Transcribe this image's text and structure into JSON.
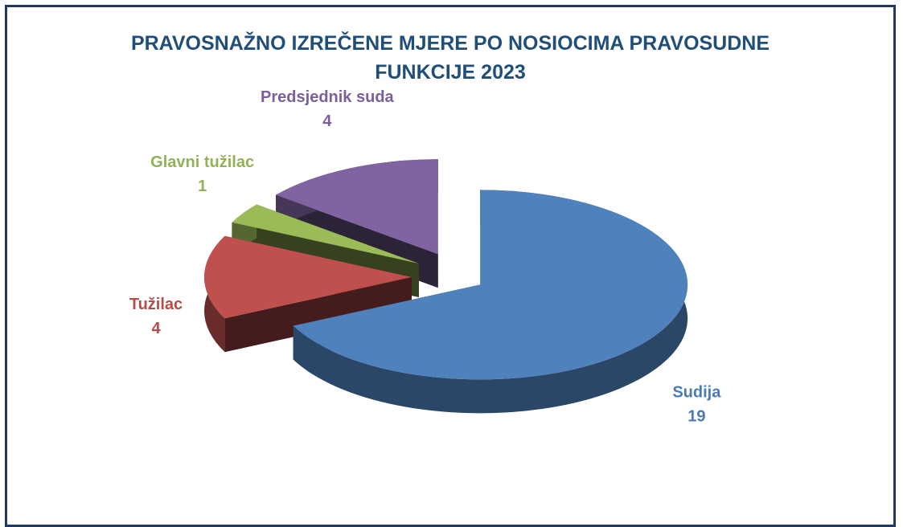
{
  "chart_data": {
    "type": "pie",
    "title": "PRAVOSNAŽNO IZREČENE MJERE PO NOSIOCIMA PRAVOSUDNE FUNKCIJE 2023",
    "categories": [
      "Sudija",
      "Tužilac",
      "Glavni tužilac",
      "Predsjednik suda"
    ],
    "values": [
      19,
      4,
      1,
      4
    ],
    "colors": [
      "#4f81bd",
      "#c0504d",
      "#9bbb59",
      "#8064a2"
    ]
  }
}
